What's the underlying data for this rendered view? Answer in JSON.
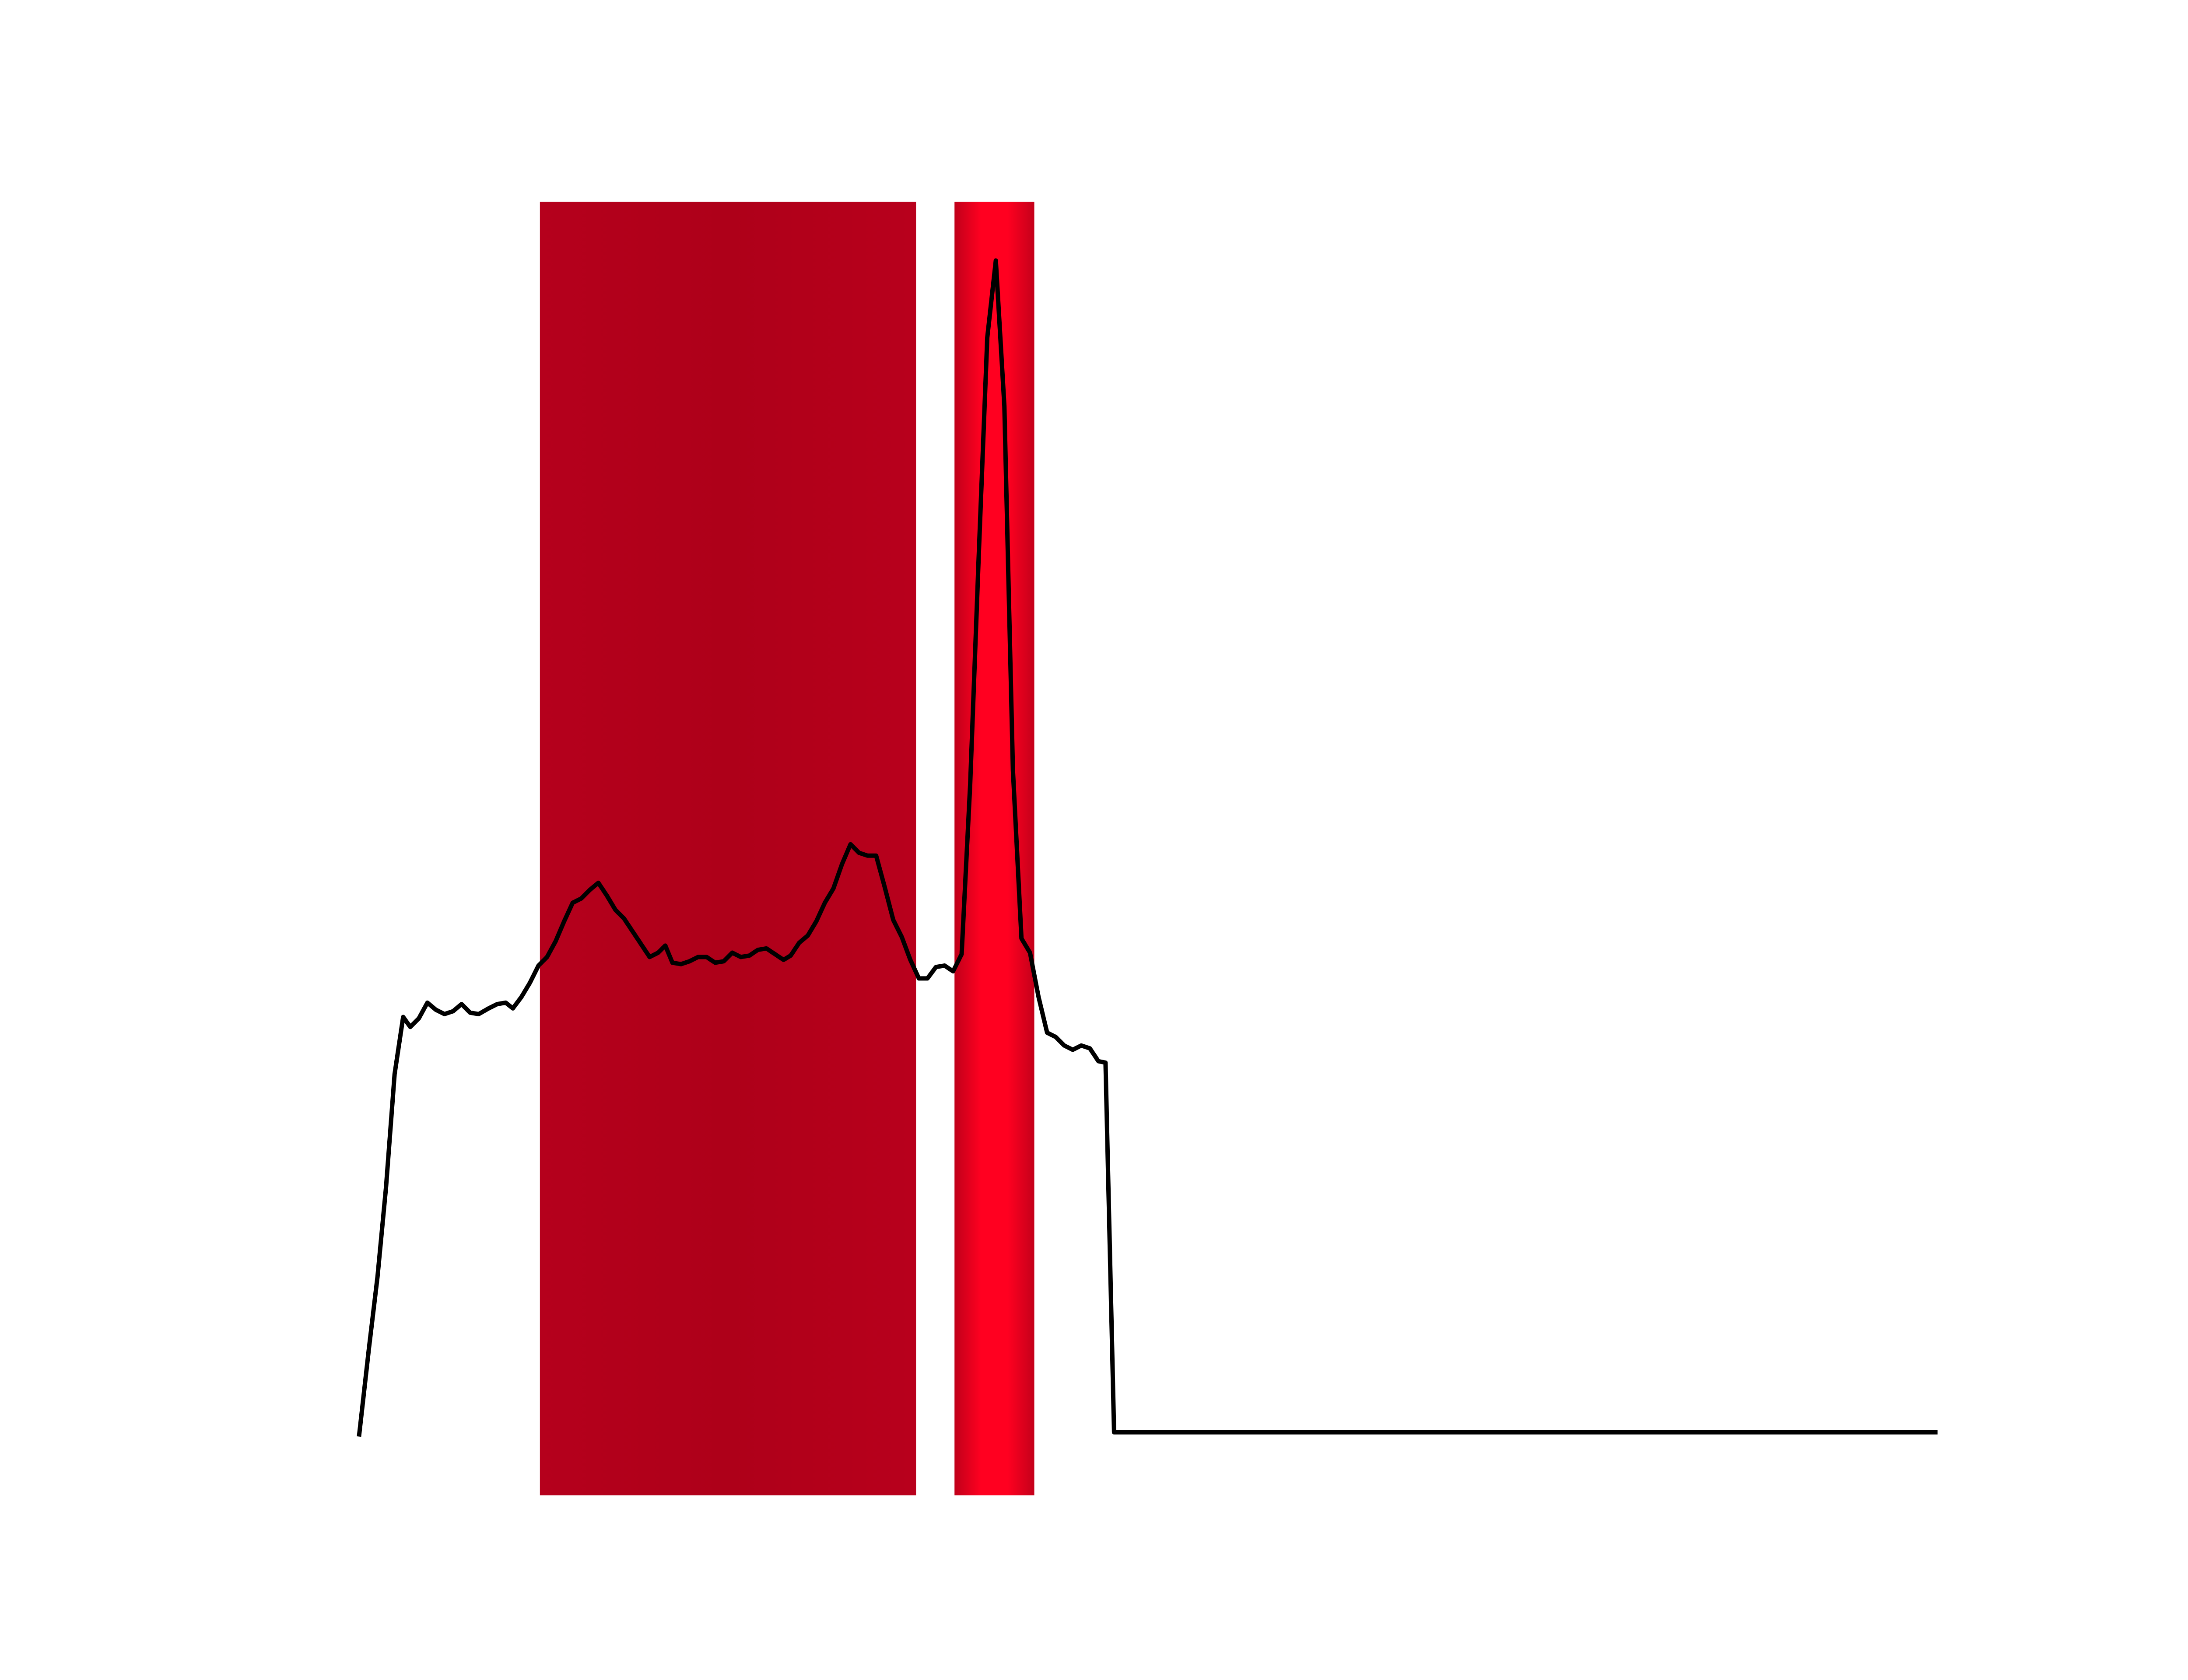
{
  "chart_data": {
    "type": "line",
    "x": [
      0,
      7,
      13,
      19,
      25,
      31,
      36,
      42,
      48,
      54,
      60,
      66,
      72,
      78,
      84,
      91,
      97,
      103,
      108,
      114,
      120,
      126,
      132,
      138,
      144,
      150,
      156,
      162,
      168,
      174,
      180,
      186,
      192,
      198,
      204,
      210,
      215,
      220,
      226,
      232,
      238,
      244,
      250,
      256,
      262,
      268,
      274,
      280,
      286,
      292,
      298,
      303,
      309,
      315,
      321,
      327,
      333,
      339,
      345,
      351,
      357,
      363,
      369,
      375,
      381,
      387,
      393,
      399,
      405,
      411,
      417,
      423,
      429,
      435,
      441,
      447,
      453,
      459,
      465,
      471,
      477,
      483,
      489,
      495,
      501,
      507,
      513,
      519,
      524,
      530,
      1108
    ],
    "series": [
      {
        "color": "#000000",
        "values": [
          0,
          62,
          112,
          175,
          254,
          294,
          287,
          293,
          304,
          299,
          296,
          298,
          303,
          297,
          296,
          300,
          303,
          304,
          300,
          308,
          318,
          330,
          336,
          347,
          361,
          374,
          377,
          383,
          388,
          379,
          369,
          363,
          354,
          345,
          336,
          339,
          344,
          332,
          331,
          333,
          336,
          336,
          332,
          333,
          339,
          336,
          337,
          341,
          342,
          338,
          334,
          337,
          346,
          351,
          361,
          374,
          384,
          401,
          415,
          409,
          407,
          407,
          385,
          362,
          350,
          334,
          321,
          321,
          329,
          330,
          326,
          338,
          457,
          617,
          770,
          824,
          722,
          467,
          349,
          339,
          308,
          283,
          280,
          274,
          271,
          274,
          272,
          263,
          262,
          3,
          3
        ]
      }
    ],
    "spans": [
      {
        "x0": 127,
        "x1": 391,
        "colors": [
          "#b5001c",
          "#ae0019",
          "#b8001c"
        ]
      },
      {
        "x0": 418,
        "x1": 474,
        "colors": [
          "#c0001a",
          "#ff0020",
          "#ff0020",
          "#c4001a"
        ]
      }
    ],
    "xlim": [
      -55.4,
      1163.4
    ],
    "ylim": [
      -41.2,
      865.2
    ]
  }
}
